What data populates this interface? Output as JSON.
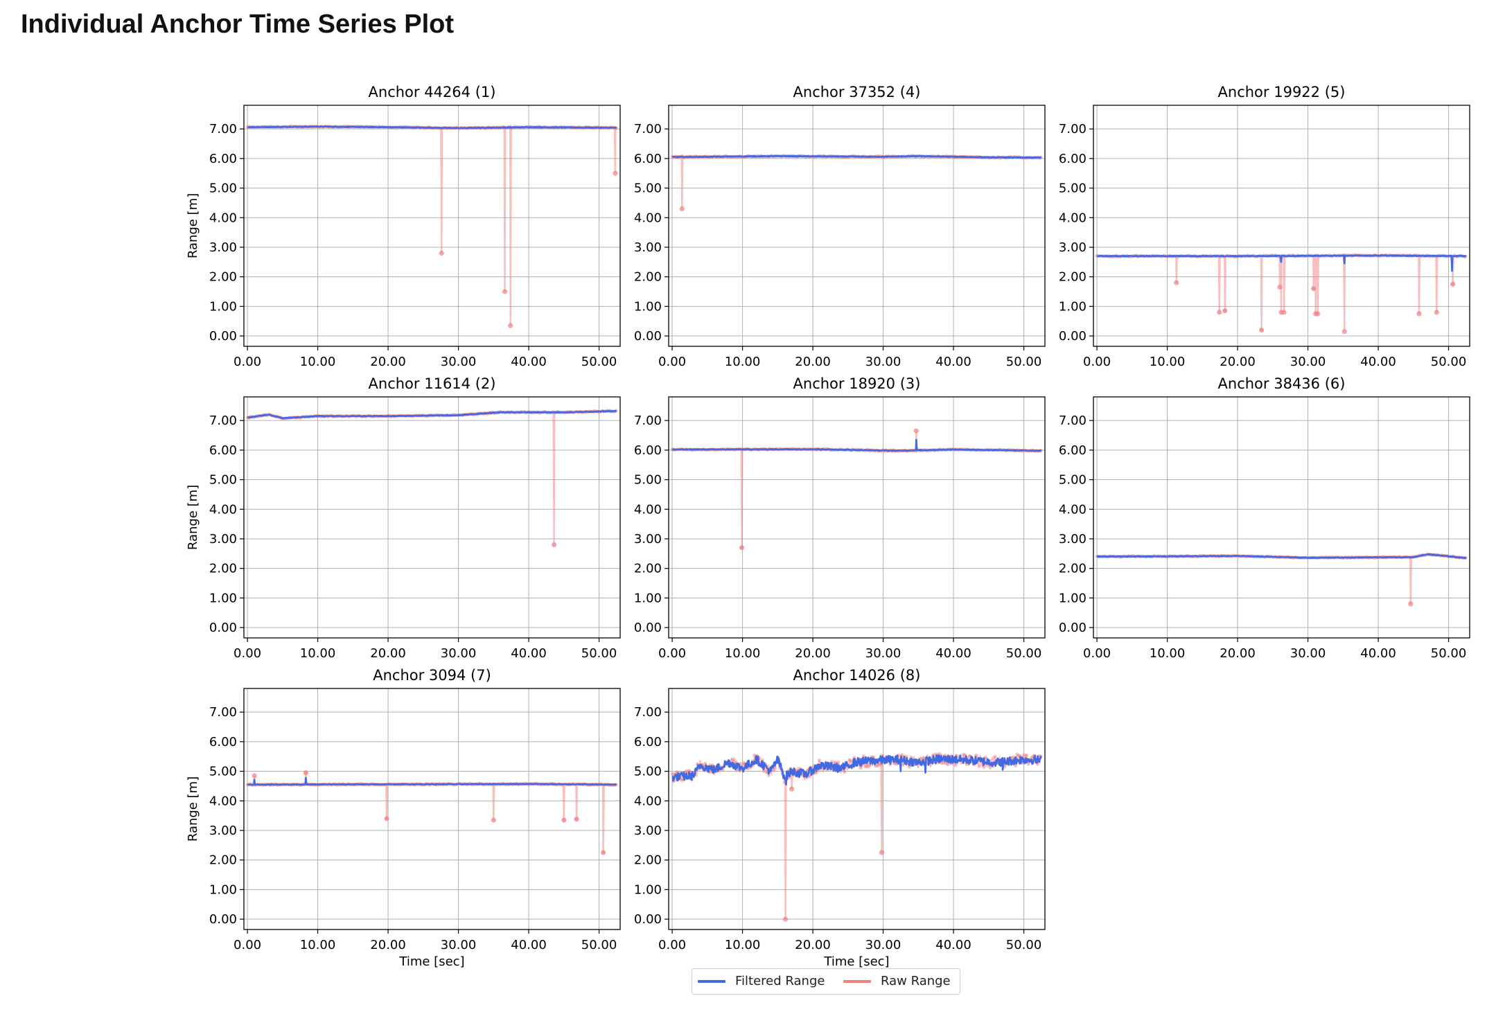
{
  "page": {
    "title": "Individual Anchor Time Series Plot"
  },
  "legend": {
    "filtered_label": "Filtered Range",
    "raw_label": "Raw Range"
  },
  "colors": {
    "filtered": "#4169e1",
    "raw": "#f08080",
    "grid": "#b0b0b0",
    "axis": "#000000"
  },
  "chart_data": [
    {
      "type": "line",
      "title": "Anchor 44264 (1)",
      "xlabel": "",
      "ylabel": "Range [m]",
      "xlim": [
        -0.5,
        53
      ],
      "ylim": [
        -0.35,
        7.8
      ],
      "xticks": [
        "0.00",
        "10.00",
        "20.00",
        "30.00",
        "40.00",
        "50.00"
      ],
      "yticks": [
        "0.00",
        "1.00",
        "2.00",
        "3.00",
        "4.00",
        "5.00",
        "6.00",
        "7.00"
      ],
      "grid": true,
      "series": [
        {
          "name": "Filtered Range",
          "baseline": [
            [
              0,
              7.06
            ],
            [
              10,
              7.08
            ],
            [
              20,
              7.06
            ],
            [
              30,
              7.03
            ],
            [
              40,
              7.06
            ],
            [
              52.5,
              7.04
            ]
          ],
          "spikes": []
        },
        {
          "name": "Raw Range",
          "baseline": [
            [
              0,
              7.06
            ],
            [
              10,
              7.08
            ],
            [
              20,
              7.06
            ],
            [
              30,
              7.03
            ],
            [
              40,
              7.06
            ],
            [
              52.5,
              7.04
            ]
          ],
          "spikes": [
            [
              27.6,
              2.8
            ],
            [
              36.6,
              1.5
            ],
            [
              37.4,
              0.35
            ],
            [
              52.3,
              5.5
            ]
          ]
        }
      ]
    },
    {
      "type": "line",
      "title": "Anchor 37352 (4)",
      "xlabel": "",
      "ylabel": "",
      "xlim": [
        -0.5,
        53
      ],
      "ylim": [
        -0.35,
        7.8
      ],
      "xticks": [
        "0.00",
        "10.00",
        "20.00",
        "30.00",
        "40.00",
        "50.00"
      ],
      "yticks": [
        "0.00",
        "1.00",
        "2.00",
        "3.00",
        "4.00",
        "5.00",
        "6.00",
        "7.00"
      ],
      "grid": true,
      "series": [
        {
          "name": "Filtered Range",
          "baseline": [
            [
              0,
              6.05
            ],
            [
              15,
              6.08
            ],
            [
              30,
              6.06
            ],
            [
              35,
              6.08
            ],
            [
              45,
              6.04
            ],
            [
              52.5,
              6.03
            ]
          ],
          "spikes": []
        },
        {
          "name": "Raw Range",
          "baseline": [
            [
              0,
              6.05
            ],
            [
              15,
              6.08
            ],
            [
              30,
              6.06
            ],
            [
              35,
              6.08
            ],
            [
              45,
              6.04
            ],
            [
              52.5,
              6.03
            ]
          ],
          "spikes": [
            [
              1.4,
              4.3
            ]
          ]
        }
      ]
    },
    {
      "type": "line",
      "title": "Anchor 19922 (5)",
      "xlabel": "",
      "ylabel": "",
      "xlim": [
        -0.5,
        53
      ],
      "ylim": [
        -0.35,
        7.8
      ],
      "xticks": [
        "0.00",
        "10.00",
        "20.00",
        "30.00",
        "40.00",
        "50.00"
      ],
      "yticks": [
        "0.00",
        "1.00",
        "2.00",
        "3.00",
        "4.00",
        "5.00",
        "6.00",
        "7.00"
      ],
      "grid": true,
      "series": [
        {
          "name": "Filtered Range",
          "baseline": [
            [
              0,
              2.7
            ],
            [
              20,
              2.7
            ],
            [
              40,
              2.72
            ],
            [
              52.5,
              2.7
            ]
          ],
          "spikes": [
            [
              26.2,
              2.5
            ],
            [
              35.2,
              2.45
            ],
            [
              50.5,
              2.2
            ]
          ]
        },
        {
          "name": "Raw Range",
          "baseline": [
            [
              0,
              2.7
            ],
            [
              20,
              2.7
            ],
            [
              40,
              2.72
            ],
            [
              52.5,
              2.7
            ]
          ],
          "spikes": [
            [
              11.3,
              1.8
            ],
            [
              17.4,
              0.8
            ],
            [
              18.2,
              0.85
            ],
            [
              23.4,
              0.2
            ],
            [
              26.0,
              1.65
            ],
            [
              26.2,
              0.8
            ],
            [
              26.6,
              0.8
            ],
            [
              30.8,
              1.6
            ],
            [
              31.1,
              0.75
            ],
            [
              31.4,
              0.75
            ],
            [
              35.2,
              0.15
            ],
            [
              45.8,
              0.75
            ],
            [
              48.3,
              0.8
            ],
            [
              50.6,
              1.75
            ]
          ]
        }
      ]
    },
    {
      "type": "line",
      "title": "Anchor 11614 (2)",
      "xlabel": "",
      "ylabel": "Range [m]",
      "xlim": [
        -0.5,
        53
      ],
      "ylim": [
        -0.35,
        7.8
      ],
      "xticks": [
        "0.00",
        "10.00",
        "20.00",
        "30.00",
        "40.00",
        "50.00"
      ],
      "yticks": [
        "0.00",
        "1.00",
        "2.00",
        "3.00",
        "4.00",
        "5.00",
        "6.00",
        "7.00"
      ],
      "grid": true,
      "series": [
        {
          "name": "Filtered Range",
          "baseline": [
            [
              0,
              7.1
            ],
            [
              3,
              7.2
            ],
            [
              5,
              7.08
            ],
            [
              10,
              7.15
            ],
            [
              20,
              7.15
            ],
            [
              30,
              7.18
            ],
            [
              36,
              7.28
            ],
            [
              45,
              7.28
            ],
            [
              52.5,
              7.32
            ]
          ],
          "spikes": []
        },
        {
          "name": "Raw Range",
          "baseline": [
            [
              0,
              7.1
            ],
            [
              3,
              7.2
            ],
            [
              5,
              7.08
            ],
            [
              10,
              7.15
            ],
            [
              20,
              7.15
            ],
            [
              30,
              7.18
            ],
            [
              36,
              7.28
            ],
            [
              45,
              7.28
            ],
            [
              52.5,
              7.32
            ]
          ],
          "spikes": [
            [
              43.6,
              2.8
            ]
          ]
        }
      ]
    },
    {
      "type": "line",
      "title": "Anchor 18920 (3)",
      "xlabel": "",
      "ylabel": "",
      "xlim": [
        -0.5,
        53
      ],
      "ylim": [
        -0.35,
        7.8
      ],
      "xticks": [
        "0.00",
        "10.00",
        "20.00",
        "30.00",
        "40.00",
        "50.00"
      ],
      "yticks": [
        "0.00",
        "1.00",
        "2.00",
        "3.00",
        "4.00",
        "5.00",
        "6.00",
        "7.00"
      ],
      "grid": true,
      "series": [
        {
          "name": "Filtered Range",
          "baseline": [
            [
              0,
              6.02
            ],
            [
              20,
              6.03
            ],
            [
              32,
              5.98
            ],
            [
              40,
              6.02
            ],
            [
              52.5,
              5.98
            ]
          ],
          "spikes": [
            [
              34.7,
              6.35
            ]
          ]
        },
        {
          "name": "Raw Range",
          "baseline": [
            [
              0,
              6.02
            ],
            [
              20,
              6.03
            ],
            [
              32,
              5.98
            ],
            [
              40,
              6.02
            ],
            [
              52.5,
              5.98
            ]
          ],
          "spikes": [
            [
              9.9,
              2.7
            ],
            [
              34.7,
              6.65
            ]
          ]
        }
      ]
    },
    {
      "type": "line",
      "title": "Anchor 38436 (6)",
      "xlabel": "",
      "ylabel": "",
      "xlim": [
        -0.5,
        53
      ],
      "ylim": [
        -0.35,
        7.8
      ],
      "xticks": [
        "0.00",
        "10.00",
        "20.00",
        "30.00",
        "40.00",
        "50.00"
      ],
      "yticks": [
        "0.00",
        "1.00",
        "2.00",
        "3.00",
        "4.00",
        "5.00",
        "6.00",
        "7.00"
      ],
      "grid": true,
      "series": [
        {
          "name": "Filtered Range",
          "baseline": [
            [
              0,
              2.4
            ],
            [
              20,
              2.42
            ],
            [
              30,
              2.36
            ],
            [
              45,
              2.38
            ],
            [
              47,
              2.48
            ],
            [
              52.5,
              2.35
            ]
          ],
          "spikes": []
        },
        {
          "name": "Raw Range",
          "baseline": [
            [
              0,
              2.4
            ],
            [
              20,
              2.42
            ],
            [
              30,
              2.36
            ],
            [
              45,
              2.38
            ],
            [
              47,
              2.48
            ],
            [
              52.5,
              2.35
            ]
          ],
          "spikes": [
            [
              44.6,
              0.8
            ]
          ]
        }
      ]
    },
    {
      "type": "line",
      "title": "Anchor 3094 (7)",
      "xlabel": "Time [sec]",
      "ylabel": "Range [m]",
      "xlim": [
        -0.5,
        53
      ],
      "ylim": [
        -0.35,
        7.8
      ],
      "xticks": [
        "0.00",
        "10.00",
        "20.00",
        "30.00",
        "40.00",
        "50.00"
      ],
      "yticks": [
        "0.00",
        "1.00",
        "2.00",
        "3.00",
        "4.00",
        "5.00",
        "6.00",
        "7.00"
      ],
      "grid": true,
      "series": [
        {
          "name": "Filtered Range",
          "baseline": [
            [
              0,
              4.55
            ],
            [
              20,
              4.56
            ],
            [
              40,
              4.57
            ],
            [
              52.5,
              4.55
            ]
          ],
          "spikes": [
            [
              1.0,
              4.72
            ],
            [
              8.3,
              4.78
            ]
          ]
        },
        {
          "name": "Raw Range",
          "baseline": [
            [
              0,
              4.55
            ],
            [
              20,
              4.56
            ],
            [
              40,
              4.57
            ],
            [
              52.5,
              4.55
            ]
          ],
          "spikes": [
            [
              1.0,
              4.85
            ],
            [
              8.3,
              4.95
            ],
            [
              19.8,
              3.4
            ],
            [
              35.0,
              3.35
            ],
            [
              45.0,
              3.35
            ],
            [
              46.8,
              3.38
            ],
            [
              50.6,
              2.25
            ]
          ]
        }
      ]
    },
    {
      "type": "line",
      "title": "Anchor 14026 (8)",
      "xlabel": "Time [sec]",
      "ylabel": "",
      "xlim": [
        -0.5,
        53
      ],
      "ylim": [
        -0.35,
        7.8
      ],
      "xticks": [
        "0.00",
        "10.00",
        "20.00",
        "30.00",
        "40.00",
        "50.00"
      ],
      "yticks": [
        "0.00",
        "1.00",
        "2.00",
        "3.00",
        "4.00",
        "5.00",
        "6.00",
        "7.00"
      ],
      "grid": true,
      "series": [
        {
          "name": "Filtered Range",
          "baseline": [
            [
              0,
              4.8
            ],
            [
              3,
              4.85
            ],
            [
              4,
              5.2
            ],
            [
              6,
              5.05
            ],
            [
              8,
              5.3
            ],
            [
              10,
              5.1
            ],
            [
              12,
              5.4
            ],
            [
              14,
              5.0
            ],
            [
              15,
              5.4
            ],
            [
              16,
              4.8
            ],
            [
              17,
              5.0
            ],
            [
              19,
              4.9
            ],
            [
              21,
              5.2
            ],
            [
              24,
              5.1
            ],
            [
              26,
              5.3
            ],
            [
              28,
              5.35
            ],
            [
              32,
              5.4
            ],
            [
              35,
              5.3
            ],
            [
              38,
              5.42
            ],
            [
              42,
              5.38
            ],
            [
              46,
              5.3
            ],
            [
              50,
              5.4
            ],
            [
              52.5,
              5.38
            ]
          ],
          "spikes": [
            [
              16.2,
              4.55
            ],
            [
              32.5,
              5.0
            ],
            [
              36,
              4.95
            ],
            [
              47,
              5.05
            ]
          ]
        },
        {
          "name": "Raw Range",
          "baseline": [
            [
              0,
              4.8
            ],
            [
              3,
              4.85
            ],
            [
              4,
              5.2
            ],
            [
              6,
              5.05
            ],
            [
              8,
              5.3
            ],
            [
              10,
              5.1
            ],
            [
              12,
              5.4
            ],
            [
              14,
              5.0
            ],
            [
              15,
              5.4
            ],
            [
              16,
              4.8
            ],
            [
              17,
              5.0
            ],
            [
              19,
              4.9
            ],
            [
              21,
              5.2
            ],
            [
              24,
              5.1
            ],
            [
              26,
              5.3
            ],
            [
              28,
              5.35
            ],
            [
              32,
              5.4
            ],
            [
              35,
              5.3
            ],
            [
              38,
              5.42
            ],
            [
              42,
              5.38
            ],
            [
              46,
              5.3
            ],
            [
              50,
              5.4
            ],
            [
              52.5,
              5.38
            ]
          ],
          "spikes": [
            [
              16.1,
              0.0
            ],
            [
              17.0,
              4.4
            ],
            [
              29.8,
              2.25
            ]
          ]
        }
      ]
    }
  ]
}
